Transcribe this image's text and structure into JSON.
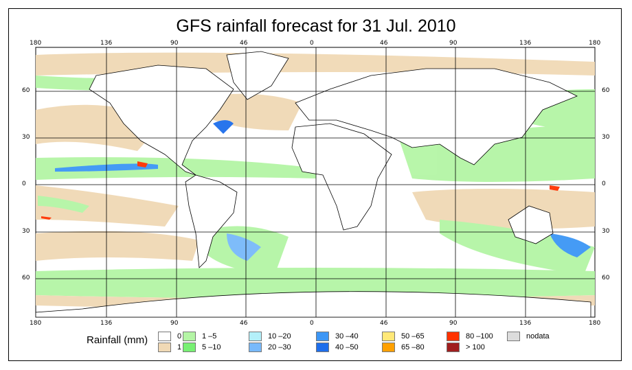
{
  "title": "GFS rainfall forecast for 31 Jul. 2010",
  "lon_labels": [
    "180",
    "136",
    "90",
    "46",
    "0",
    "46",
    "90",
    "136",
    "180"
  ],
  "lat_labels": [
    "60",
    "30",
    "0",
    "30",
    "60"
  ],
  "legend": {
    "title": "Rainfall (mm)",
    "items": [
      {
        "label": "0",
        "color": "#ffffff"
      },
      {
        "label": "1",
        "color": "#f0d9b5"
      },
      {
        "label": "1 –5",
        "color": "#b4f5a5"
      },
      {
        "label": "5 –10",
        "color": "#78f073"
      },
      {
        "label": "10 –20",
        "color": "#b4f0fa"
      },
      {
        "label": "20 –30",
        "color": "#78b9fa"
      },
      {
        "label": "30 –40",
        "color": "#3c96f5"
      },
      {
        "label": "40 –50",
        "color": "#1e6eeb"
      },
      {
        "label": "50 –65",
        "color": "#ffe878"
      },
      {
        "label": "65 –80",
        "color": "#ffa000"
      },
      {
        "label": "80 –100",
        "color": "#ff3200"
      },
      {
        "label": "> 100",
        "color": "#a01e1e"
      },
      {
        "label": "nodata",
        "color": "#dcdcdc"
      }
    ]
  }
}
